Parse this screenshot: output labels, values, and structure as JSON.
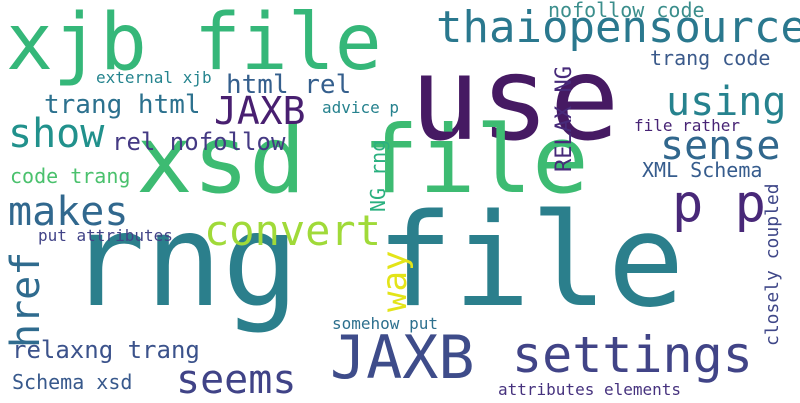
{
  "words": [
    {
      "text": "rng file",
      "color": "#2b7f8c"
    },
    {
      "text": "use",
      "color": "#461a63"
    },
    {
      "text": "xsd file",
      "color": "#3dbb72"
    },
    {
      "text": "xjb file",
      "color": "#35b779"
    },
    {
      "text": "settings",
      "color": "#414487"
    },
    {
      "text": "JAXB",
      "color": "#3e4c8a"
    },
    {
      "text": "p p",
      "color": "#482878"
    },
    {
      "text": "thaiopensource",
      "color": "#2a788e"
    },
    {
      "text": "convert",
      "color": "#a0da39"
    },
    {
      "text": "makes",
      "color": "#31688e"
    },
    {
      "text": "seems",
      "color": "#404387"
    },
    {
      "text": "using",
      "color": "#26828e"
    },
    {
      "text": "sense",
      "color": "#31678d"
    },
    {
      "text": "show",
      "color": "#21918c"
    },
    {
      "text": "href",
      "color": "#2f6b8e"
    },
    {
      "text": "JAXB",
      "color": "#481f70"
    },
    {
      "text": "way",
      "color": "#e3e418"
    },
    {
      "text": "trang html",
      "color": "#2c718e"
    },
    {
      "text": "html rel",
      "color": "#355f8d"
    },
    {
      "text": "rel nofollow",
      "color": "#443983"
    },
    {
      "text": "relaxng trang",
      "color": "#3b528b"
    },
    {
      "text": "nofollow code",
      "color": "#3b8e8c"
    },
    {
      "text": "trang code",
      "color": "#3b5a8b"
    },
    {
      "text": "XML Schema",
      "color": "#365c8d"
    },
    {
      "text": "RELAX NG",
      "color": "#472a7a"
    },
    {
      "text": "NG rng",
      "color": "#2ab07f"
    },
    {
      "text": "code trang",
      "color": "#4ac16d"
    },
    {
      "text": "Schema xsd",
      "color": "#38598c"
    },
    {
      "text": "put attributes",
      "color": "#414387"
    },
    {
      "text": "somehow put",
      "color": "#2d708e"
    },
    {
      "text": "closely coupled",
      "color": "#3f4788"
    },
    {
      "text": "attributes elements",
      "color": "#46327e"
    },
    {
      "text": "advice p",
      "color": "#26828e"
    },
    {
      "text": "file rather",
      "color": "#482475"
    },
    {
      "text": "external xjb",
      "color": "#25848e"
    }
  ]
}
